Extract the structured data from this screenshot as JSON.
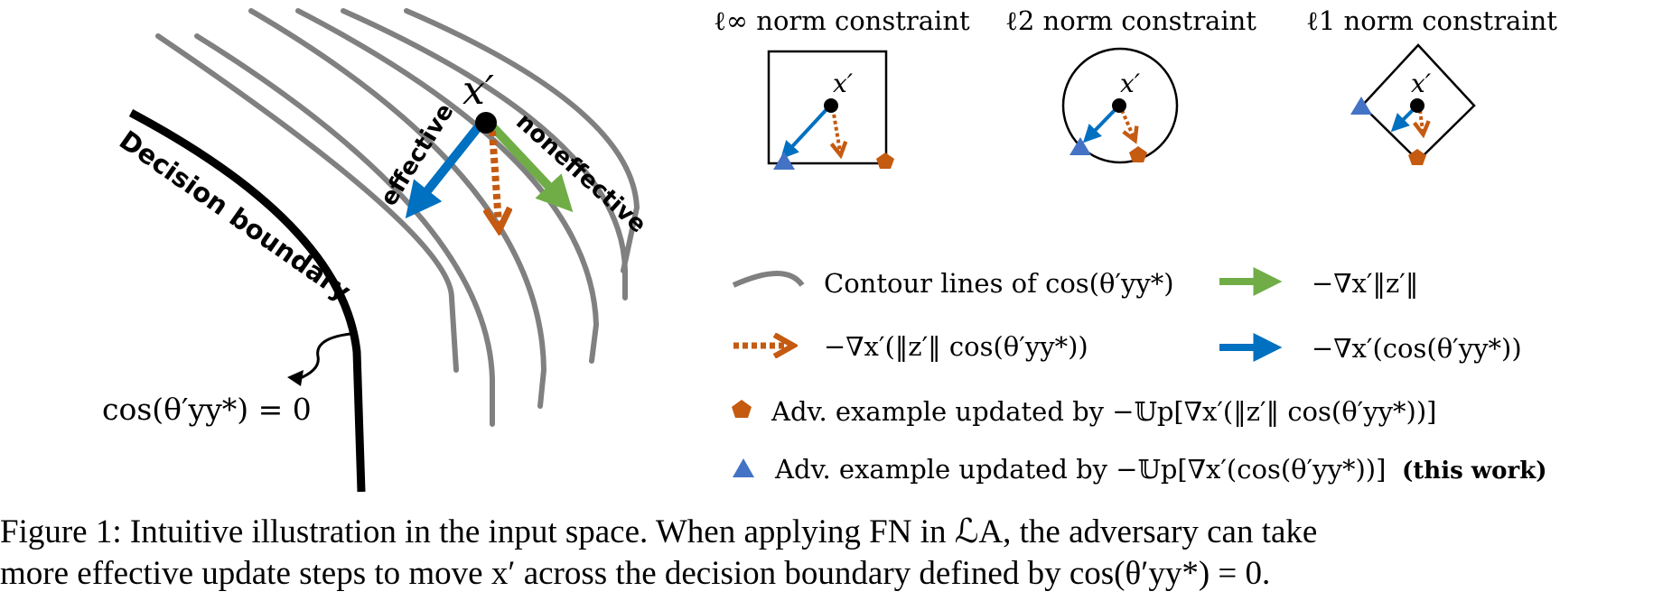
{
  "figure": {
    "point_label": "x′",
    "arrow_labels": {
      "effective": "effective",
      "noneffective": "noneffective"
    },
    "boundary_label": "Decision boundary",
    "boundary_equation": "cos(θ′yy*) = 0",
    "constraints": [
      {
        "title": "ℓ∞ norm constraint",
        "point": "x′"
      },
      {
        "title": "ℓ2 norm constraint",
        "point": "x′"
      },
      {
        "title": "ℓ1 norm constraint",
        "point": "x′"
      }
    ],
    "legend": {
      "contour": "Contour lines of cos(θ′yy*)",
      "green_arrow": "−∇x′‖z′‖",
      "orange_arrow": "−∇x′(‖z′‖ cos(θ′yy*))",
      "blue_arrow": "−∇x′(cos(θ′yy*))",
      "pentagon": "Adv. example updated by −𝕌p[∇x′(‖z′‖ cos(θ′yy*))]",
      "triangle": "Adv. example updated by −𝕌p[∇x′(cos(θ′yy*))]",
      "this_work": "(this work)"
    },
    "colors": {
      "blue": "#0070c0",
      "orange": "#c55a11",
      "green": "#70ad47",
      "gray": "#808080",
      "marker_blue": "#4472c4"
    }
  },
  "caption": {
    "line1": "Figure 1: Intuitive illustration in the input space. When applying FN in ℒA, the adversary can take",
    "line2": "more effective update steps to move x′ across the decision boundary defined by cos(θ′yy*) = 0."
  }
}
